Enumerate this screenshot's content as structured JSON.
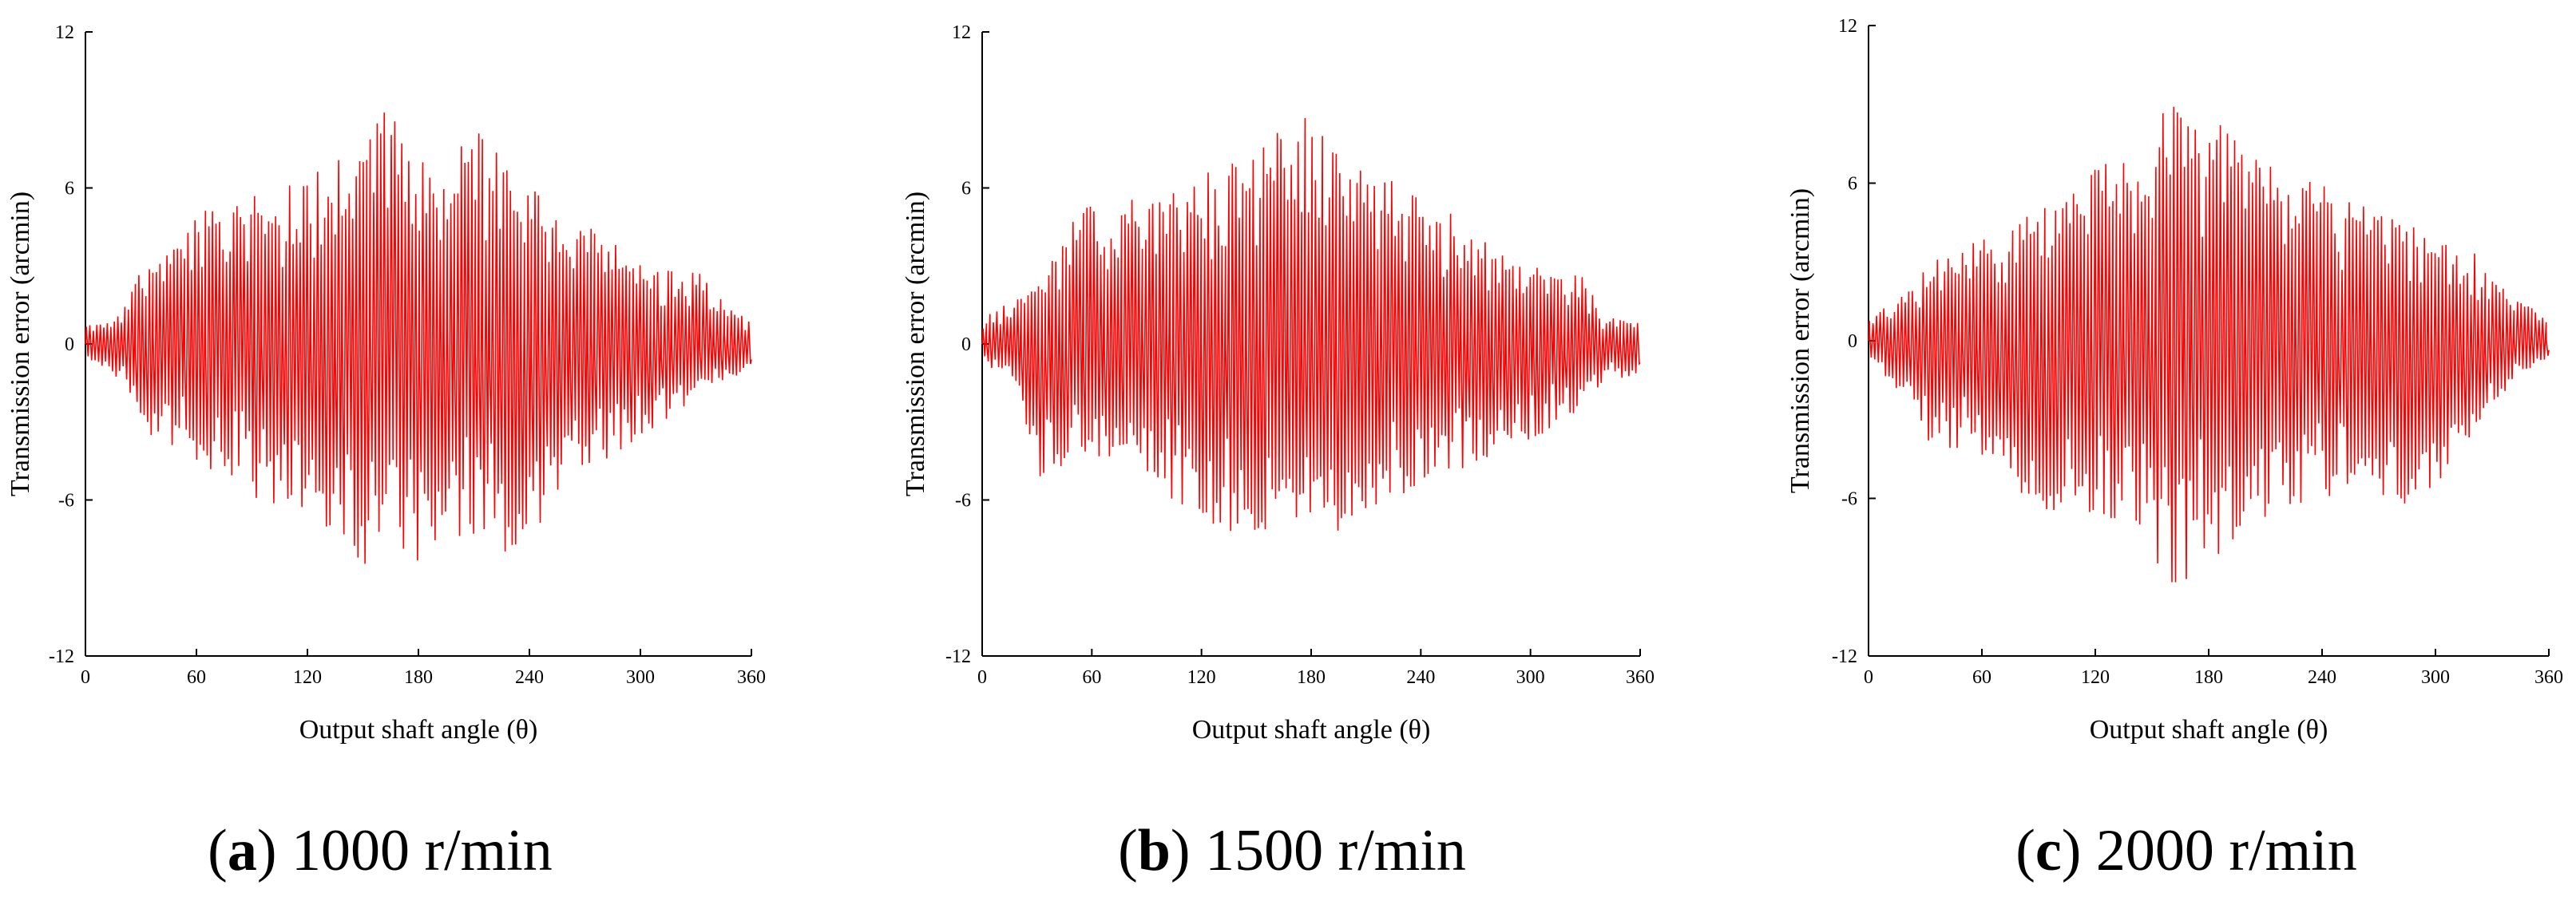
{
  "chart_data": [
    {
      "type": "line",
      "caption_letter": "a",
      "caption_text": "1000 r/min",
      "xlabel": "Output shaft angle (θ)",
      "ylabel": "Transmission error (arcmin)",
      "xlim": [
        0,
        360
      ],
      "ylim": [
        -12,
        12
      ],
      "xticks": [
        "0",
        "60",
        "120",
        "180",
        "240",
        "300",
        "360"
      ],
      "yticks": [
        "12",
        "6",
        "0",
        "-6",
        "-12"
      ],
      "line_color": "#ff0000",
      "envelope": {
        "x": [
          0,
          20,
          30,
          60,
          90,
          120,
          140,
          155,
          165,
          180,
          195,
          210,
          230,
          260,
          300,
          330,
          340,
          360
        ],
        "upper": [
          0.8,
          1.2,
          3.0,
          5.0,
          5.8,
          6.8,
          7.3,
          9.2,
          9.1,
          7.2,
          6.7,
          8.8,
          6.8,
          5.2,
          3.2,
          2.9,
          2.0,
          0.9
        ],
        "lower": [
          -0.5,
          -1.5,
          -3.3,
          -4.5,
          -5.9,
          -6.6,
          -7.5,
          -9.0,
          -7.5,
          -8.5,
          -7.8,
          -7.4,
          -8.9,
          -5.6,
          -3.6,
          -2.2,
          -1.6,
          -1.0
        ]
      },
      "cycles": 190,
      "seed": 11
    },
    {
      "type": "line",
      "caption_letter": "b",
      "caption_text": "1500 r/min",
      "xlabel": "Output shaft angle (θ)",
      "ylabel": "Transmission error (arcmin)",
      "xlim": [
        0,
        360
      ],
      "ylim": [
        -12,
        12
      ],
      "xticks": [
        "0",
        "60",
        "120",
        "180",
        "240",
        "300",
        "360"
      ],
      "yticks": [
        "12",
        "6",
        "0",
        "-6",
        "-12"
      ],
      "line_color": "#ff0000",
      "envelope": {
        "x": [
          0,
          20,
          30,
          60,
          90,
          120,
          150,
          160,
          170,
          175,
          190,
          210,
          240,
          270,
          300,
          330,
          340,
          360
        ],
        "upper": [
          1.0,
          1.8,
          2.2,
          6.0,
          5.6,
          6.6,
          7.4,
          9.2,
          7.0,
          9.8,
          7.4,
          7.2,
          5.6,
          4.6,
          3.2,
          2.6,
          1.2,
          0.9
        ],
        "lower": [
          -0.8,
          -1.5,
          -5.6,
          -4.2,
          -5.4,
          -6.8,
          -7.8,
          -9.8,
          -6.8,
          -7.0,
          -7.5,
          -6.6,
          -5.4,
          -4.6,
          -3.8,
          -2.4,
          -1.4,
          -1.2
        ]
      },
      "cycles": 190,
      "seed": 23
    },
    {
      "type": "line",
      "caption_letter": "c",
      "caption_text": "2000 r/min",
      "xlabel": "Output shaft angle (θ)",
      "ylabel": "Transmission error (arcmin)",
      "xlim": [
        0,
        360
      ],
      "ylim": [
        -12,
        12
      ],
      "xticks": [
        "0",
        "60",
        "120",
        "180",
        "240",
        "300",
        "360"
      ],
      "yticks": [
        "12",
        "6",
        "0",
        "-6",
        "-12"
      ],
      "line_color": "#ff0000",
      "envelope": {
        "x": [
          0,
          20,
          30,
          60,
          90,
          120,
          150,
          165,
          175,
          185,
          200,
          230,
          260,
          290,
          320,
          340,
          360
        ],
        "upper": [
          0.9,
          1.8,
          2.8,
          4.2,
          5.0,
          6.6,
          7.4,
          10.7,
          7.6,
          8.5,
          7.2,
          6.2,
          5.4,
          4.4,
          3.4,
          1.8,
          0.8
        ],
        "lower": [
          -0.5,
          -2.5,
          -3.9,
          -4.6,
          -6.4,
          -6.6,
          -8.3,
          -10.0,
          -8.2,
          -8.4,
          -7.0,
          -6.2,
          -5.6,
          -6.5,
          -3.6,
          -1.6,
          -0.6
        ]
      },
      "cycles": 190,
      "seed": 37
    }
  ]
}
